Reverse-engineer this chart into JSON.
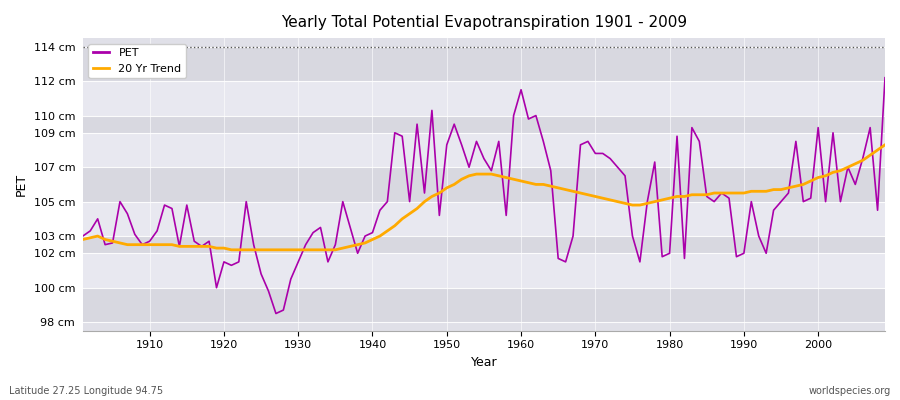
{
  "title": "Yearly Total Potential Evapotranspiration 1901 - 2009",
  "xlabel": "Year",
  "ylabel": "PET",
  "subtitle_left": "Latitude 27.25 Longitude 94.75",
  "subtitle_right": "worldspecies.org",
  "pet_color": "#aa00aa",
  "trend_color": "#ffaa00",
  "bg_color": "#ffffff",
  "plot_bg_color": "#e0e0e8",
  "band_color_1": "#d8d8e0",
  "band_color_2": "#e8e8f0",
  "ylim_min": 97.5,
  "ylim_max": 114.5,
  "yticks": [
    98,
    100,
    102,
    103,
    105,
    107,
    109,
    110,
    112,
    114
  ],
  "ytick_labels": [
    "98 cm",
    "100 cm",
    "102 cm",
    "103 cm",
    "105 cm",
    "107 cm",
    "109 cm",
    "110 cm",
    "112 cm",
    "114 cm"
  ],
  "years": [
    1901,
    1902,
    1903,
    1904,
    1905,
    1906,
    1907,
    1908,
    1909,
    1910,
    1911,
    1912,
    1913,
    1914,
    1915,
    1916,
    1917,
    1918,
    1919,
    1920,
    1921,
    1922,
    1923,
    1924,
    1925,
    1926,
    1927,
    1928,
    1929,
    1930,
    1931,
    1932,
    1933,
    1934,
    1935,
    1936,
    1937,
    1938,
    1939,
    1940,
    1941,
    1942,
    1943,
    1944,
    1945,
    1946,
    1947,
    1948,
    1949,
    1950,
    1951,
    1952,
    1953,
    1954,
    1955,
    1956,
    1957,
    1958,
    1959,
    1960,
    1961,
    1962,
    1963,
    1964,
    1965,
    1966,
    1967,
    1968,
    1969,
    1970,
    1971,
    1972,
    1973,
    1974,
    1975,
    1976,
    1977,
    1978,
    1979,
    1980,
    1981,
    1982,
    1983,
    1984,
    1985,
    1986,
    1987,
    1988,
    1989,
    1990,
    1991,
    1992,
    1993,
    1994,
    1995,
    1996,
    1997,
    1998,
    1999,
    2000,
    2001,
    2002,
    2003,
    2004,
    2005,
    2006,
    2007,
    2008,
    2009
  ],
  "pet": [
    103.0,
    103.3,
    104.0,
    102.5,
    102.6,
    105.0,
    104.3,
    103.1,
    102.5,
    102.7,
    103.3,
    104.8,
    104.6,
    102.4,
    104.8,
    102.7,
    102.4,
    102.7,
    100.0,
    101.5,
    101.3,
    101.5,
    105.0,
    102.5,
    100.8,
    99.8,
    98.5,
    98.7,
    100.5,
    101.5,
    102.5,
    103.2,
    103.5,
    101.5,
    102.5,
    105.0,
    103.5,
    102.0,
    103.0,
    103.2,
    104.5,
    105.0,
    109.0,
    108.8,
    105.0,
    109.5,
    105.5,
    110.3,
    104.2,
    108.3,
    109.5,
    108.3,
    107.0,
    108.5,
    107.5,
    106.8,
    108.5,
    104.2,
    110.0,
    111.5,
    109.8,
    110.0,
    108.5,
    106.8,
    101.7,
    101.5,
    103.0,
    108.3,
    108.5,
    107.8,
    107.8,
    107.5,
    107.0,
    106.5,
    103.0,
    101.5,
    105.0,
    107.3,
    101.8,
    102.0,
    108.8,
    101.7,
    109.3,
    108.5,
    105.3,
    105.0,
    105.5,
    105.2,
    101.8,
    102.0,
    105.0,
    103.0,
    102.0,
    104.5,
    105.0,
    105.5,
    108.5,
    105.0,
    105.2,
    109.3,
    105.0,
    109.0,
    105.0,
    107.0,
    106.0,
    107.5,
    109.3,
    104.5,
    112.2
  ],
  "trend": [
    102.8,
    102.9,
    103.0,
    102.8,
    102.7,
    102.6,
    102.5,
    102.5,
    102.5,
    102.5,
    102.5,
    102.5,
    102.5,
    102.4,
    102.4,
    102.4,
    102.4,
    102.4,
    102.3,
    102.3,
    102.2,
    102.2,
    102.2,
    102.2,
    102.2,
    102.2,
    102.2,
    102.2,
    102.2,
    102.2,
    102.2,
    102.2,
    102.2,
    102.2,
    102.2,
    102.3,
    102.4,
    102.5,
    102.6,
    102.8,
    103.0,
    103.3,
    103.6,
    104.0,
    104.3,
    104.6,
    105.0,
    105.3,
    105.5,
    105.8,
    106.0,
    106.3,
    106.5,
    106.6,
    106.6,
    106.6,
    106.5,
    106.4,
    106.3,
    106.2,
    106.1,
    106.0,
    106.0,
    105.9,
    105.8,
    105.7,
    105.6,
    105.5,
    105.4,
    105.3,
    105.2,
    105.1,
    105.0,
    104.9,
    104.8,
    104.8,
    104.9,
    105.0,
    105.1,
    105.2,
    105.3,
    105.3,
    105.4,
    105.4,
    105.4,
    105.5,
    105.5,
    105.5,
    105.5,
    105.5,
    105.6,
    105.6,
    105.6,
    105.7,
    105.7,
    105.8,
    105.9,
    106.0,
    106.2,
    106.4,
    106.5,
    106.7,
    106.8,
    107.0,
    107.2,
    107.4,
    107.7,
    108.0,
    108.3
  ]
}
